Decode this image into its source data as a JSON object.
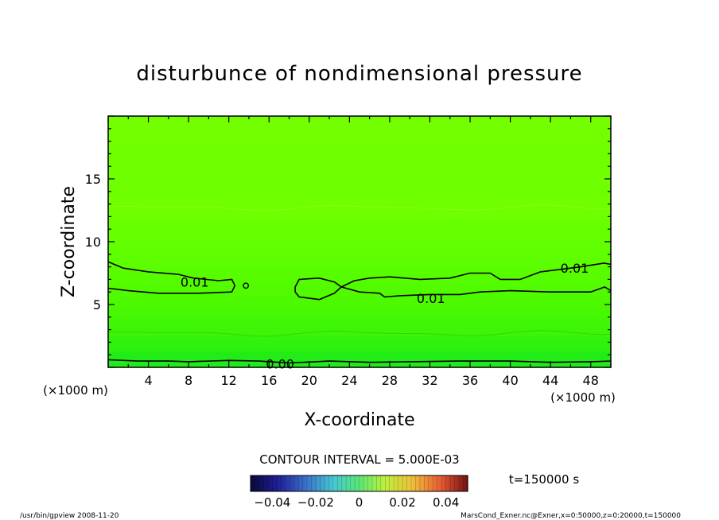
{
  "chart_data": {
    "type": "heatmap",
    "title": "disturbunce of nondimensional pressure",
    "xlabel": "X-coordinate",
    "ylabel": "Z-coordinate",
    "x_unit_left": "(×1000 m)",
    "x_unit_right": "(×1000 m)",
    "xlim": [
      0,
      50
    ],
    "ylim": [
      0,
      20
    ],
    "xticks": [
      4,
      8,
      12,
      16,
      20,
      24,
      28,
      32,
      36,
      40,
      44,
      48
    ],
    "yticks": [
      5,
      10,
      15
    ],
    "contour_interval_label": "CONTOUR INTERVAL = 5.000E-03",
    "contours": [
      {
        "level": 0.01,
        "label": "0.01",
        "lines": [
          [
            [
              0,
              8.4
            ],
            [
              1.5,
              7.9
            ],
            [
              4,
              7.6
            ],
            [
              7,
              7.4
            ],
            [
              8.5,
              7.1
            ],
            [
              11,
              6.9
            ],
            [
              12.3,
              7.0
            ],
            [
              12.6,
              6.5
            ],
            [
              12.3,
              6.0
            ],
            [
              9,
              5.9
            ],
            [
              5,
              5.9
            ],
            [
              2,
              6.1
            ],
            [
              0,
              6.3
            ]
          ],
          [
            [
              18.6,
              6.0
            ],
            [
              19,
              5.6
            ],
            [
              21,
              5.4
            ],
            [
              22.5,
              5.9
            ],
            [
              23.2,
              6.4
            ],
            [
              22.5,
              6.8
            ],
            [
              21,
              7.1
            ],
            [
              19,
              7.0
            ],
            [
              18.6,
              6.4
            ],
            [
              18.6,
              6.0
            ]
          ],
          [
            [
              23.2,
              6.4
            ],
            [
              24.5,
              6.9
            ],
            [
              26,
              7.1
            ],
            [
              28,
              7.2
            ],
            [
              31,
              7.0
            ],
            [
              34,
              7.1
            ],
            [
              36,
              7.5
            ],
            [
              38,
              7.5
            ],
            [
              39,
              7.0
            ],
            [
              41,
              7.0
            ],
            [
              43,
              7.6
            ],
            [
              45,
              7.8
            ],
            [
              47,
              8.0
            ],
            [
              49.3,
              8.3
            ],
            [
              50,
              8.2
            ]
          ],
          [
            [
              23.2,
              6.4
            ],
            [
              25,
              6.0
            ],
            [
              27,
              5.9
            ],
            [
              27.5,
              5.6
            ],
            [
              29,
              5.7
            ],
            [
              32,
              5.8
            ],
            [
              35,
              5.8
            ],
            [
              37,
              6.0
            ],
            [
              40,
              6.1
            ],
            [
              44,
              6.0
            ],
            [
              48,
              6.0
            ],
            [
              49.4,
              6.4
            ],
            [
              50,
              6.1
            ]
          ]
        ]
      },
      {
        "level": 0.0,
        "label": "0.00",
        "lines": [
          [
            [
              0,
              0.6
            ],
            [
              3,
              0.5
            ],
            [
              6,
              0.5
            ],
            [
              8,
              0.45
            ],
            [
              12,
              0.55
            ],
            [
              15,
              0.5
            ],
            [
              18,
              0.35
            ],
            [
              22,
              0.5
            ],
            [
              26,
              0.4
            ],
            [
              30,
              0.45
            ],
            [
              35,
              0.5
            ],
            [
              40,
              0.5
            ],
            [
              44,
              0.4
            ],
            [
              48,
              0.45
            ],
            [
              50,
              0.5
            ]
          ]
        ]
      }
    ],
    "contour_labels": [
      {
        "text": "0.01",
        "x": 8.6,
        "y": 6.8
      },
      {
        "text": "0.01",
        "x": 32.1,
        "y": 5.5
      },
      {
        "text": "0.01",
        "x": 46.4,
        "y": 7.9
      },
      {
        "text": "0.00",
        "x": 17.1,
        "y": 0.3
      }
    ],
    "colorbar": {
      "ticks": [
        "−0.04",
        "−0.02",
        "0",
        "0.02",
        "0.04"
      ],
      "tick_values": [
        -0.04,
        -0.02,
        0,
        0.02,
        0.04
      ],
      "range": [
        -0.05,
        0.05
      ]
    },
    "time_label": "t=150000 s"
  },
  "footer": {
    "left": "/usr/bin/gpview  2008-11-20",
    "right": "MarsCond_Exner.nc@Exner,x=0:50000,z=0:20000,t=150000"
  }
}
